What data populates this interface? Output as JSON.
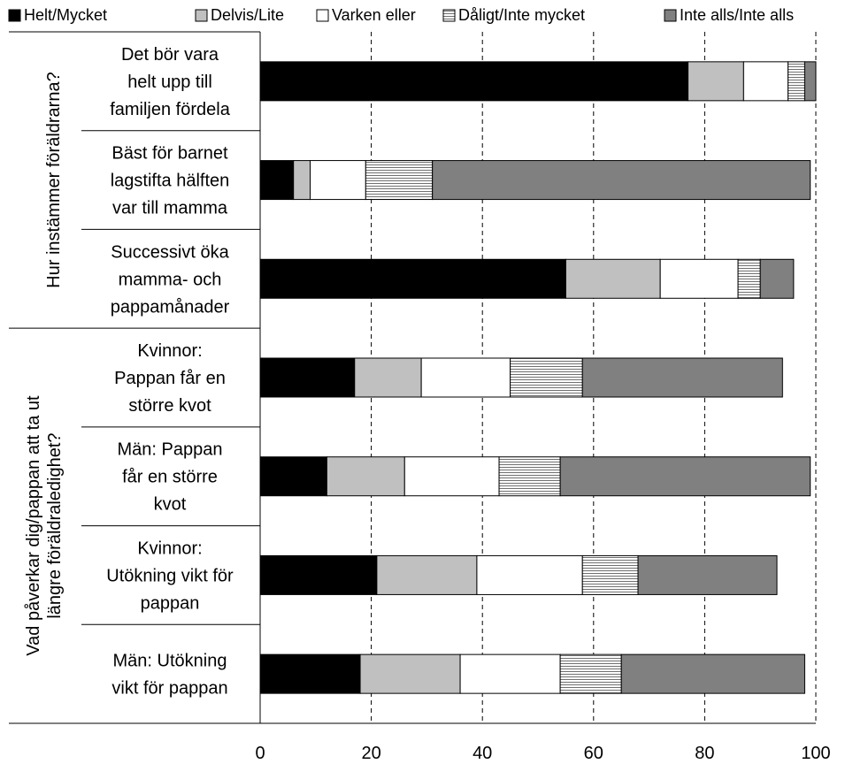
{
  "chart_data": {
    "type": "bar",
    "orientation": "horizontal",
    "stacked": true,
    "xlim": [
      0,
      100
    ],
    "x_ticks": [
      0,
      20,
      40,
      60,
      80,
      100
    ],
    "grid": "vertical dashed",
    "legend_position": "top",
    "groups": [
      {
        "label": "Hur instämmer föräldrarna?",
        "categories": [
          0,
          1,
          2
        ]
      },
      {
        "label": "Vad påverkar dig/pappan att ta ut längre föräldraledighet?",
        "categories": [
          3,
          4,
          5,
          6
        ]
      }
    ],
    "categories": [
      "Det bör vara helt upp till familjen fördela",
      "Bäst för barnet lagstifta hälften var till mamma",
      "Successivt öka mamma- och pappamånader",
      "Kvinnor: Pappan får en större kvot",
      "Män: Pappan får en större kvot",
      "Kvinnor: Utökning vikt för pappan",
      "Män: Utökning vikt för pappan"
    ],
    "category_lines": [
      [
        "Det bör vara",
        "helt upp till",
        "familjen fördela"
      ],
      [
        "Bäst för barnet",
        "lagstifta hälften",
        "var till mamma"
      ],
      [
        "Successivt öka",
        "mamma- och",
        "pappamånader"
      ],
      [
        "Kvinnor:",
        "Pappan får en",
        "större kvot"
      ],
      [
        "Män: Pappan",
        "får en större",
        "kvot"
      ],
      [
        "Kvinnor:",
        "Utökning vikt för",
        "pappan"
      ],
      [
        "Män: Utökning",
        "vikt för pappan"
      ]
    ],
    "series": [
      {
        "name": "Helt/Mycket",
        "color": "#000000",
        "pattern": "solid",
        "values": [
          77,
          6,
          55,
          17,
          12,
          21,
          18
        ]
      },
      {
        "name": "Delvis/Lite",
        "color": "#c0c0c0",
        "pattern": "solid",
        "values": [
          10,
          3,
          17,
          12,
          14,
          18,
          18
        ]
      },
      {
        "name": "Varken eller",
        "color": "#ffffff",
        "pattern": "solid",
        "values": [
          8,
          10,
          14,
          16,
          17,
          19,
          18
        ]
      },
      {
        "name": "Dåligt/Inte mycket",
        "color": "#e8e8e8",
        "pattern": "horizontal-lines",
        "values": [
          3,
          12,
          4,
          13,
          11,
          10,
          11
        ]
      },
      {
        "name": "Inte alls/Inte alls",
        "color": "#808080",
        "pattern": "solid",
        "values": [
          2,
          68,
          6,
          36,
          45,
          25,
          33
        ]
      }
    ]
  }
}
